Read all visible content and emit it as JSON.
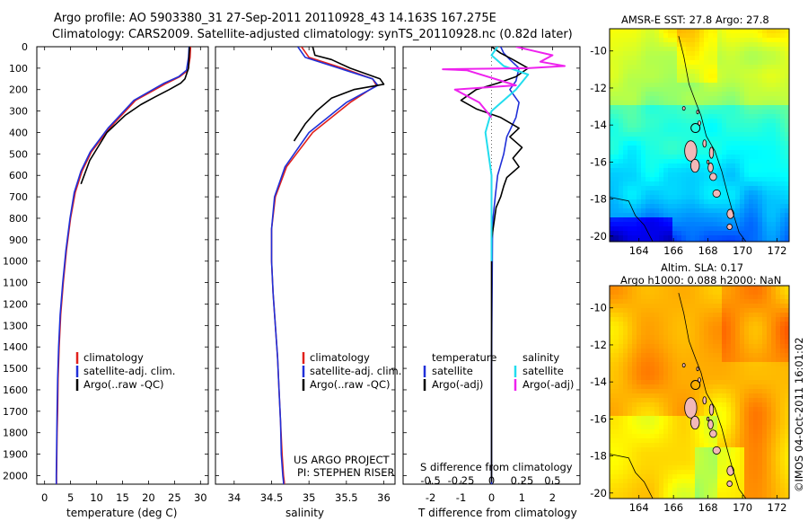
{
  "header": {
    "title1": "Argo profile: AO 5903380_31 27-Sep-2011 20110928_43 14.163S 167.275E",
    "title2": "Climatology: CARS2009. Satellite-adjusted climatology: synTS_20110928.nc (0.82d later)"
  },
  "colors": {
    "climatology": "#e0201c",
    "satellite": "#2030d8",
    "argo": "#000000",
    "sal_satellite": "#22ddee",
    "sal_argo": "#ee22ee",
    "map_land": "#f2b8b8"
  },
  "depth_axis": {
    "ticks": [
      0,
      100,
      200,
      300,
      400,
      500,
      600,
      700,
      800,
      900,
      1000,
      1100,
      1200,
      1300,
      1400,
      1500,
      1600,
      1700,
      1800,
      1900,
      2000
    ]
  },
  "chart_data": [
    {
      "type": "line",
      "name": "temperature-profile",
      "xlabel": "temperature (deg C)",
      "xlim": [
        -1.5,
        31.5
      ],
      "ylim": [
        0,
        2040
      ],
      "xticks": [
        0,
        5,
        10,
        15,
        20,
        25,
        30
      ],
      "legend": [
        "climatology",
        "satellite-adj. clim.",
        "Argo(..raw -QC)"
      ],
      "series": [
        {
          "name": "climatology",
          "color": "red",
          "x": [
            28.1,
            28.0,
            27.6,
            26.0,
            23.5,
            17.5,
            12.5,
            9.0,
            7.2,
            5.9,
            5.0,
            4.2,
            3.6,
            3.1,
            2.8,
            2.6,
            2.5,
            2.4,
            2.35,
            2.3,
            2.3
          ],
          "y": [
            0,
            50,
            110,
            140,
            170,
            250,
            380,
            490,
            580,
            680,
            800,
            950,
            1100,
            1250,
            1400,
            1550,
            1700,
            1800,
            1900,
            2000,
            2040
          ]
        },
        {
          "name": "satellite-adj. clim.",
          "color": "blue",
          "x": [
            27.8,
            27.7,
            27.3,
            25.8,
            23.0,
            17.2,
            12.2,
            8.8,
            7.0,
            5.7,
            4.9,
            4.1,
            3.5,
            3.0,
            2.7,
            2.5,
            2.4,
            2.35,
            2.3,
            2.25,
            2.25
          ],
          "y": [
            0,
            50,
            110,
            140,
            170,
            250,
            380,
            490,
            580,
            680,
            800,
            950,
            1100,
            1250,
            1400,
            1550,
            1700,
            1800,
            1900,
            2000,
            2040
          ]
        },
        {
          "name": "Argo(..raw -QC)",
          "color": "black",
          "x": [
            27.9,
            27.8,
            27.7,
            27.0,
            26.2,
            24.0,
            21.2,
            18.5,
            15.5,
            12.0,
            8.7,
            7.0
          ],
          "y": [
            0,
            40,
            100,
            150,
            170,
            200,
            235,
            270,
            320,
            400,
            530,
            640
          ]
        }
      ]
    },
    {
      "type": "line",
      "name": "salinity-profile",
      "xlabel": "salinity",
      "xlim": [
        33.75,
        36.15
      ],
      "ylim": [
        0,
        2040
      ],
      "xticks": [
        34,
        34.5,
        35,
        35.5,
        36
      ],
      "xtick_labels": [
        "34",
        "34.5",
        "35",
        "35.5",
        "36"
      ],
      "legend": [
        "climatology",
        "satellite-adj. clim.",
        "Argo(..raw -QC)"
      ],
      "series": [
        {
          "name": "climatology",
          "color": "red",
          "x": [
            34.9,
            35.0,
            35.45,
            35.85,
            35.9,
            35.55,
            35.05,
            34.7,
            34.55,
            34.5,
            34.5,
            34.52,
            34.55,
            34.58,
            34.6,
            34.62,
            34.64,
            34.66,
            34.67,
            34.67
          ],
          "y": [
            0,
            50,
            100,
            150,
            180,
            260,
            400,
            560,
            700,
            850,
            1000,
            1150,
            1300,
            1450,
            1600,
            1750,
            1900,
            2000,
            2030,
            2040
          ]
        },
        {
          "name": "satellite-adj. clim.",
          "color": "blue",
          "x": [
            34.85,
            34.95,
            35.4,
            35.85,
            35.92,
            35.5,
            35.0,
            34.68,
            34.54,
            34.5,
            34.5,
            34.52,
            34.55,
            34.58,
            34.6,
            34.62,
            34.63,
            34.65,
            34.66,
            34.66
          ],
          "y": [
            0,
            50,
            100,
            150,
            180,
            260,
            400,
            560,
            700,
            850,
            1000,
            1150,
            1300,
            1450,
            1600,
            1750,
            1900,
            2000,
            2030,
            2040
          ]
        },
        {
          "name": "Argo(..raw -QC)",
          "color": "black",
          "x": [
            35.05,
            35.08,
            35.3,
            35.55,
            35.95,
            36.0,
            35.6,
            35.3,
            35.1,
            34.95,
            34.8
          ],
          "y": [
            0,
            40,
            60,
            100,
            150,
            175,
            200,
            240,
            300,
            360,
            440
          ]
        }
      ]
    },
    {
      "type": "line",
      "name": "difference-profile",
      "xlabel_bottom": "T difference from climatology",
      "xlabel_top": "S difference from climatology",
      "xlim_T": [
        -2.9,
        2.9
      ],
      "xticks_T": [
        -2,
        -1,
        0,
        1,
        2
      ],
      "xticks_S": [
        -0.5,
        -0.25,
        0,
        0.25,
        0.5
      ],
      "xtick_labels_S": [
        "-0.5",
        "-0.25",
        "0",
        "0.25",
        "0.5"
      ],
      "ylim": [
        0,
        2040
      ],
      "legend": {
        "temperature": "temperature",
        "salinity": "salinity",
        "satellite": "satellite",
        "argo_adj": "Argo(-adj)"
      },
      "series": [
        {
          "name": "temperature satellite",
          "color": "blue",
          "x": [
            0.3,
            0.4,
            0.6,
            0.9,
            0.8,
            0.6,
            0.9,
            0.8,
            0.5,
            0.4,
            0.2,
            0.12,
            0.05,
            0.03,
            0.02,
            0.01,
            0.0,
            0.0,
            0.0
          ],
          "y": [
            0,
            30,
            60,
            100,
            160,
            200,
            260,
            330,
            420,
            500,
            600,
            700,
            800,
            900,
            1100,
            1300,
            1500,
            1800,
            2040
          ]
        },
        {
          "name": "temperature Argo(-adj)",
          "color": "black",
          "x": [
            0.0,
            0.3,
            0.7,
            1.2,
            0.8,
            0.2,
            -0.5,
            -1.0,
            -0.5,
            0.3,
            0.9,
            0.6,
            1.0,
            0.7,
            0.9,
            0.5,
            0.4,
            0.3,
            0.15,
            0.1,
            0.05,
            0.0,
            0.0,
            0.0,
            0.0,
            0.0,
            0.0
          ],
          "y": [
            0,
            30,
            60,
            100,
            140,
            170,
            200,
            250,
            290,
            330,
            380,
            420,
            470,
            520,
            560,
            610,
            650,
            700,
            750,
            800,
            850,
            900,
            1100,
            1400,
            1600,
            1800,
            2030
          ]
        },
        {
          "name": "salinity satellite",
          "color": "cyan",
          "x": [
            0.05,
            0.0,
            0.1,
            0.3,
            0.2,
            0.0,
            -0.05,
            0.0,
            0.0,
            0.0,
            0.0
          ],
          "y": [
            0,
            40,
            90,
            130,
            200,
            300,
            400,
            600,
            800,
            900,
            1000
          ]
        },
        {
          "name": "salinity Argo(-adj)",
          "color": "magenta",
          "x": [
            0.2,
            0.35,
            0.5,
            0.4,
            0.6,
            0.3,
            -0.4,
            -0.2,
            0.2,
            -0.3,
            -0.1,
            0.0
          ],
          "y": [
            0,
            20,
            40,
            70,
            90,
            100,
            105,
            110,
            180,
            200,
            260,
            330
          ]
        }
      ]
    },
    {
      "type": "heatmap",
      "name": "sst-map",
      "title": "AMSR-E SST: 27.8 Argo: 27.8",
      "xlim": [
        162.3,
        172.7
      ],
      "ylim": [
        -20.3,
        -8.8
      ],
      "xticks": [
        164,
        166,
        168,
        170,
        172
      ],
      "yticks": [
        -10,
        -12,
        -14,
        -16,
        -18,
        -20
      ],
      "argo_position": [
        167.275,
        -14.163
      ]
    },
    {
      "type": "heatmap",
      "name": "sla-map",
      "title1": "Altim. SLA: 0.17",
      "title2": "Argo h1000: 0.088 h2000: NaN",
      "xlim": [
        162.3,
        172.7
      ],
      "ylim": [
        -20.3,
        -8.8
      ],
      "xticks": [
        164,
        166,
        168,
        170,
        172
      ],
      "yticks": [
        -10,
        -12,
        -14,
        -16,
        -18,
        -20
      ],
      "argo_position": [
        167.275,
        -14.163
      ]
    }
  ],
  "credits": {
    "project1": "US ARGO PROJECT",
    "project2": "PI: STEPHEN RISER",
    "imos": "©IMOS 04-Oct-2011 16:01:02"
  }
}
